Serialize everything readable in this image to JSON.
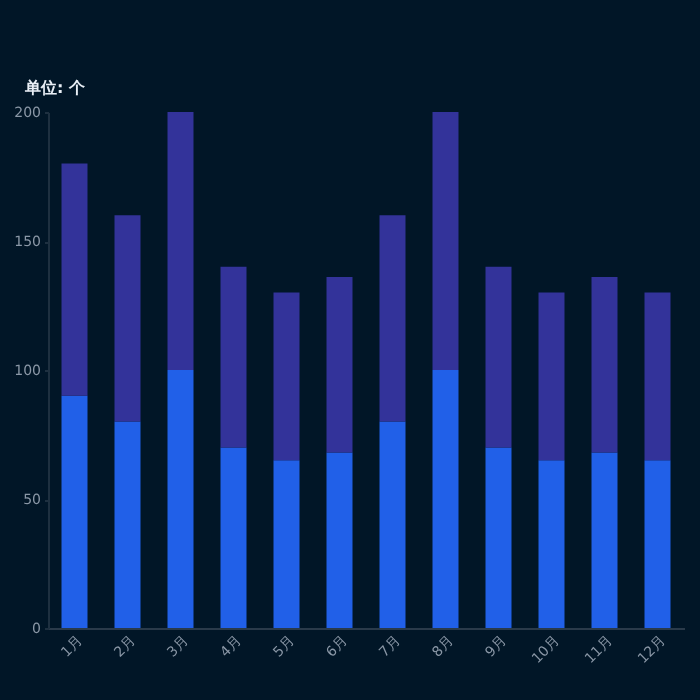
{
  "chart_data": {
    "type": "bar",
    "ylabel": "单位: 个",
    "categories": [
      "1月",
      "2月",
      "3月",
      "4月",
      "5月",
      "6月",
      "7月",
      "8月",
      "9月",
      "10月",
      "11月",
      "12月"
    ],
    "stacked": true,
    "ylim": [
      0,
      200
    ],
    "yticks": [
      0,
      50,
      100,
      150,
      200
    ],
    "grid": false,
    "legend": false,
    "series": [
      {
        "color": "#2160e8",
        "values": [
          90,
          80,
          100,
          70,
          65,
          68,
          80,
          100,
          70,
          65,
          68,
          65
        ]
      },
      {
        "color": "#33339a",
        "values": [
          90,
          80,
          100,
          70,
          65,
          68,
          80,
          100,
          70,
          65,
          68,
          65
        ]
      }
    ]
  }
}
